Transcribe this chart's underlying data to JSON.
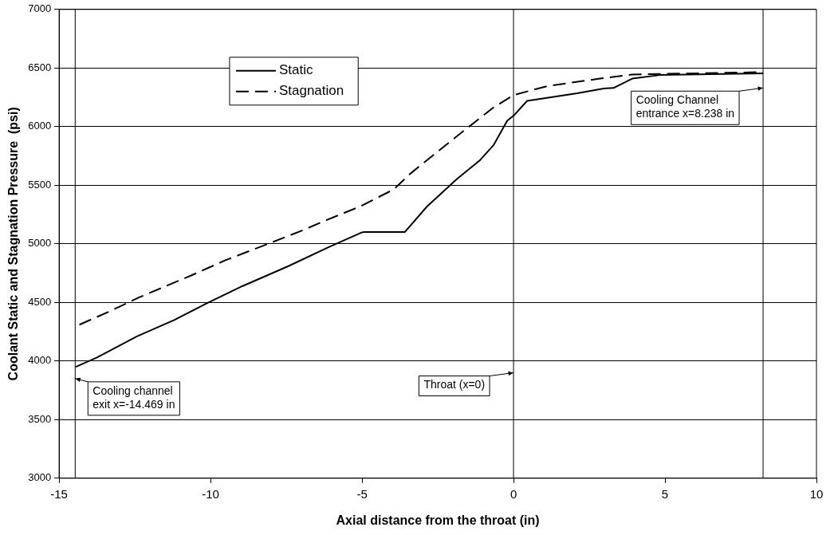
{
  "chart_data": {
    "type": "line",
    "xlabel": "Axial distance from the throat (in)",
    "ylabel": "Coolant Static and Stagnation Pressure  (psi)",
    "xlim": [
      -15,
      10
    ],
    "xticks": [
      -15,
      -10,
      -5,
      0,
      5,
      10
    ],
    "ylim": [
      3000,
      7000
    ],
    "yticks": [
      3000,
      3500,
      4000,
      4500,
      5000,
      5500,
      6000,
      6500,
      7000
    ],
    "grid": "y",
    "legend": "top",
    "marker": "none",
    "series": [
      {
        "name": "Static",
        "color": "#000000",
        "line_style": "solid",
        "x": [
          -14.45,
          -13.75,
          -12.43,
          -11.2,
          -10.07,
          -8.94,
          -7.43,
          -6.11,
          -5.03,
          -4.95,
          -3.59,
          -2.85,
          -1.86,
          -1.1,
          -0.65,
          -0.21,
          0.01,
          0.45,
          2.1,
          2.98,
          3.3,
          3.92,
          4.84,
          8.238
        ],
        "values": [
          3950,
          4030,
          4210,
          4350,
          4500,
          4640,
          4810,
          4970,
          5095,
          5100,
          5100,
          5320,
          5555,
          5715,
          5845,
          6050,
          6095,
          6220,
          6285,
          6325,
          6330,
          6410,
          6440,
          6455
        ]
      },
      {
        "name": "Stagnation",
        "color": "#000000",
        "line_style": "dashed",
        "x": [
          -14.33,
          -13.28,
          -12.34,
          -10.64,
          -9.51,
          -8.0,
          -6.96,
          -6.15,
          -5.05,
          -3.95,
          -3.4,
          -2.63,
          -1.64,
          -0.65,
          0.01,
          1.11,
          2.86,
          3.92,
          8.238
        ],
        "values": [
          4310,
          4430,
          4545,
          4730,
          4860,
          5010,
          5115,
          5205,
          5320,
          5465,
          5600,
          5760,
          5965,
          6165,
          6270,
          6345,
          6410,
          6445,
          6465
        ]
      }
    ],
    "ref_lines": [
      {
        "axis": "x",
        "value": -14.469,
        "color": "#000000"
      },
      {
        "axis": "x",
        "value": 0,
        "color": "#000000"
      },
      {
        "axis": "x",
        "value": 8.238,
        "color": "#000000"
      }
    ],
    "annotations": [
      {
        "text": "Cooling channel\nexit x=-14.469 in",
        "x": -14.469,
        "y": 3850
      },
      {
        "text": "Throat (x=0)",
        "x": 0,
        "y": 3900
      },
      {
        "text": "Cooling Channel\nentrance x=8.238 in",
        "x": 8.238,
        "y": 6330
      }
    ]
  }
}
